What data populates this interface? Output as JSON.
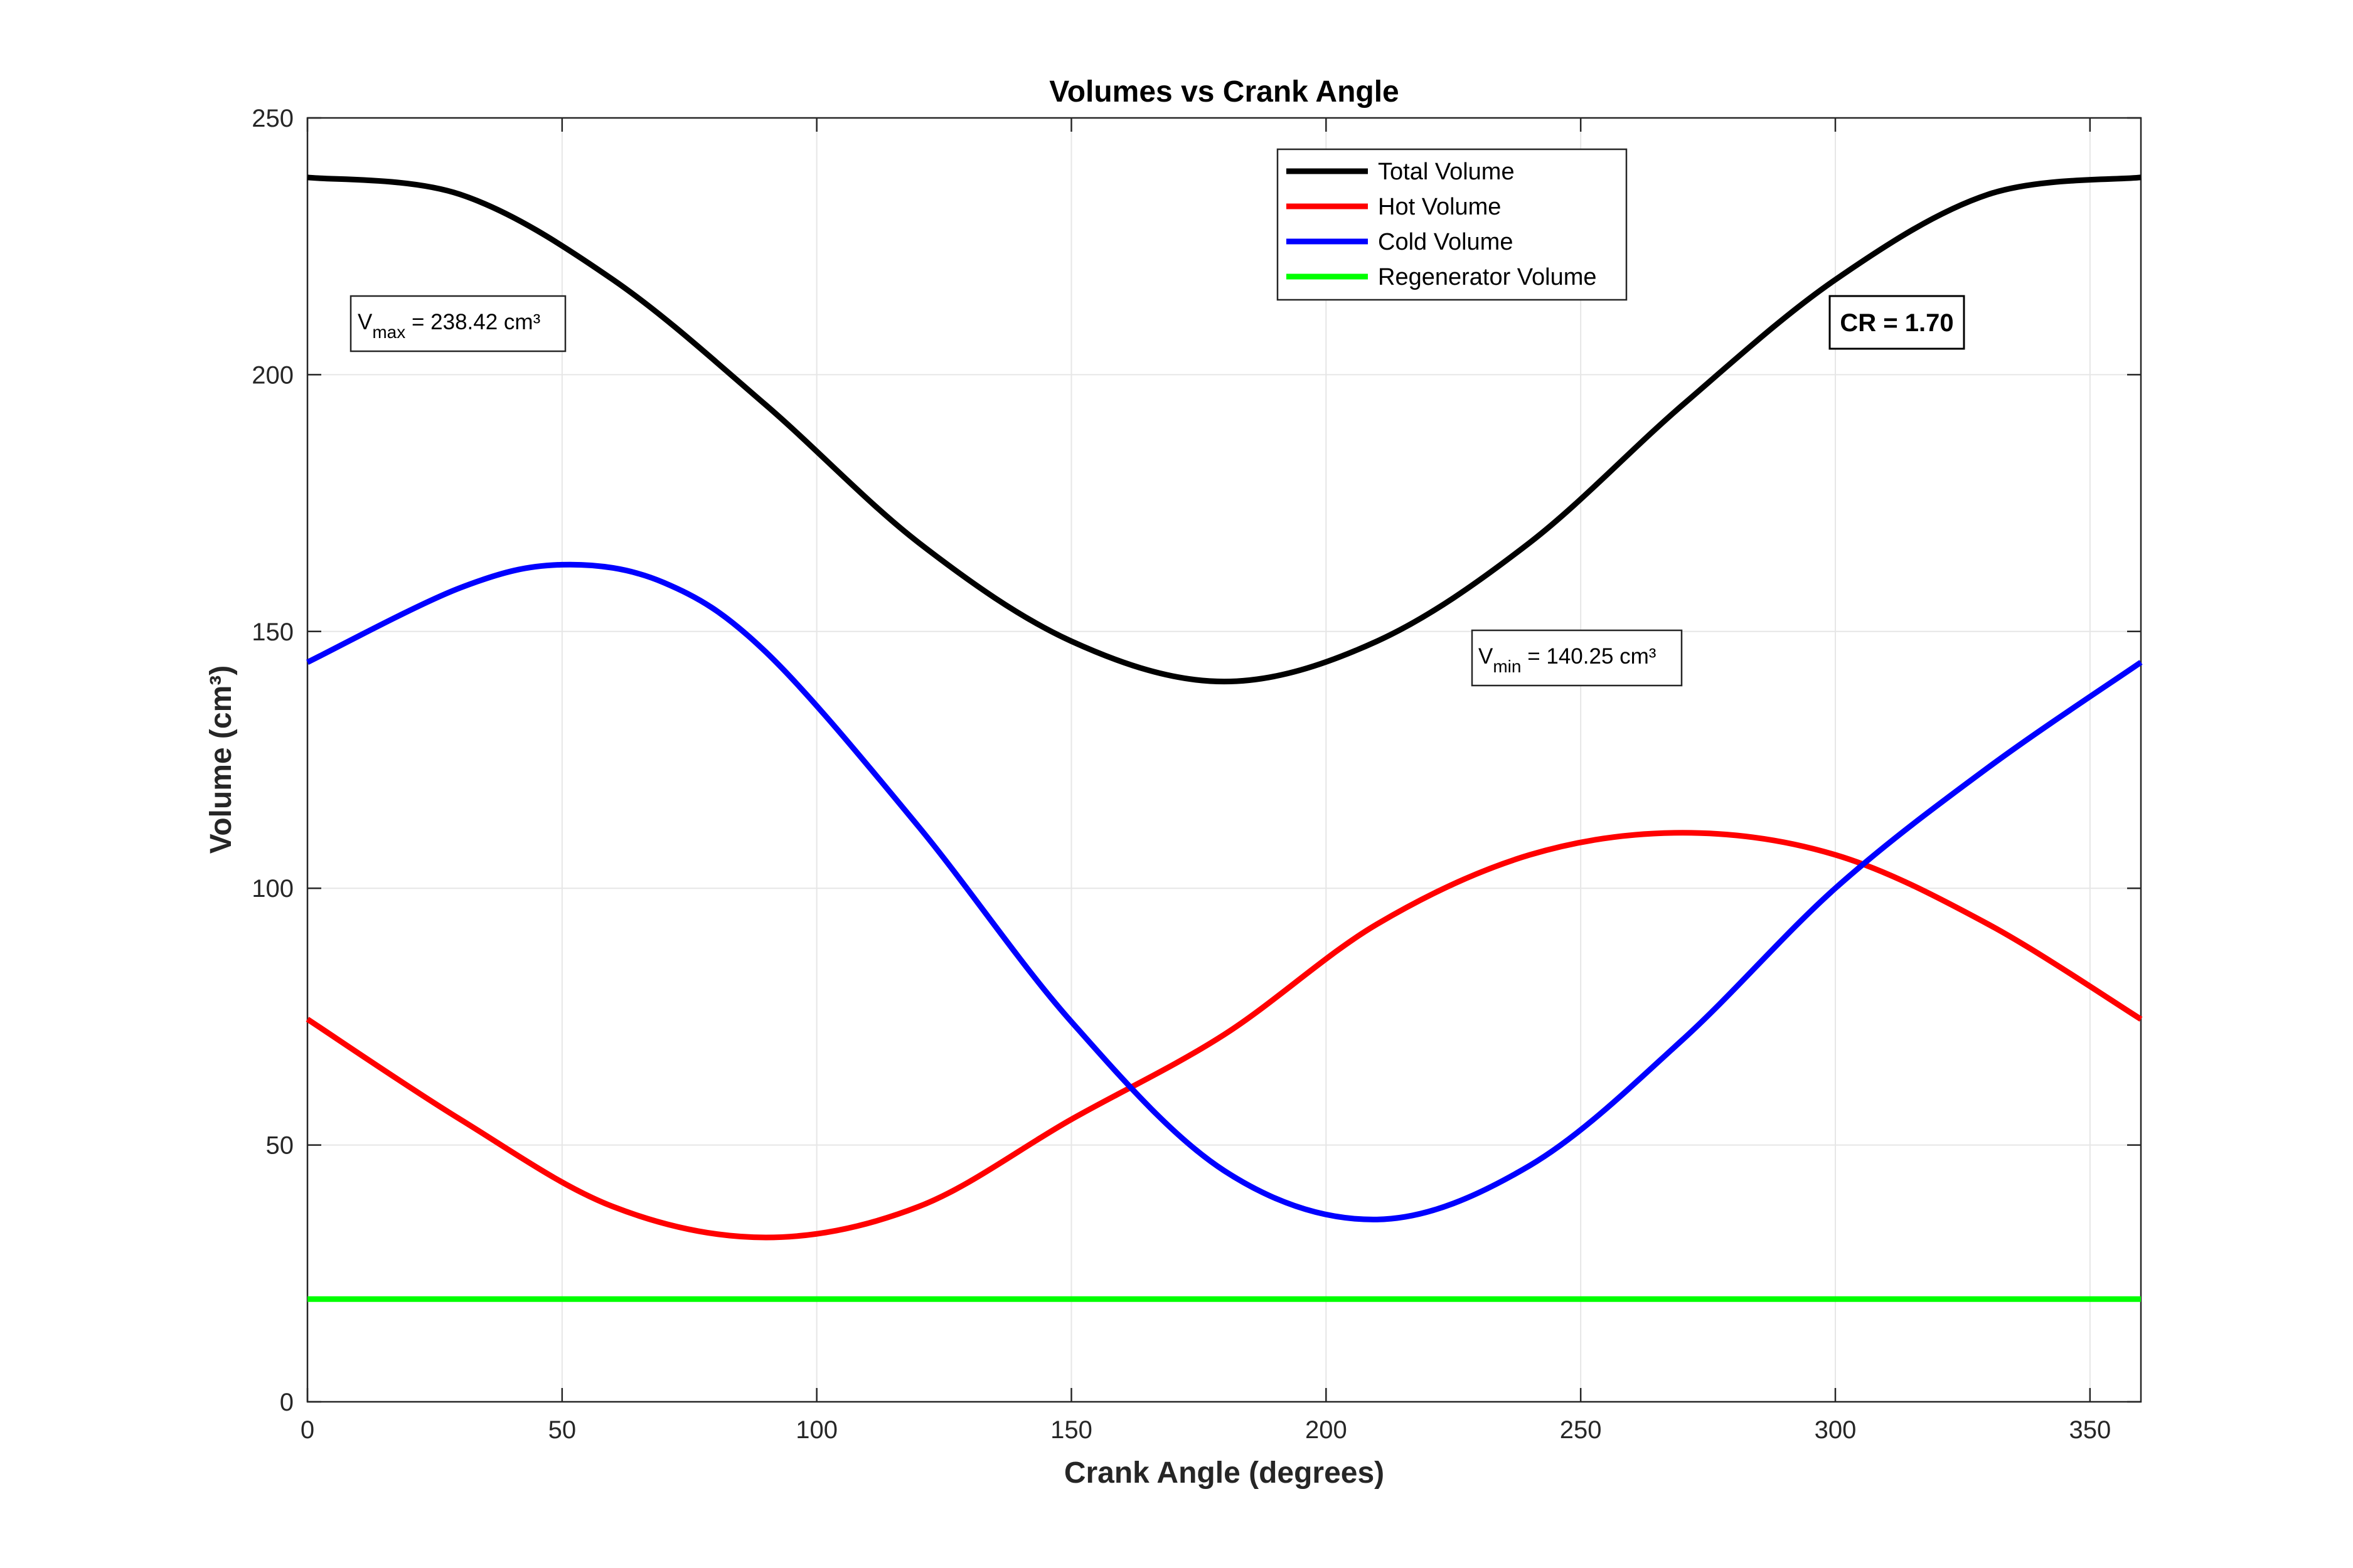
{
  "chart_data": {
    "type": "line",
    "title": "Volumes vs Crank Angle",
    "xlabel": "Crank Angle (degrees)",
    "ylabel": "Volume (cm³)",
    "xlim": [
      0,
      360
    ],
    "ylim": [
      0,
      250
    ],
    "xticks": [
      0,
      50,
      100,
      150,
      200,
      250,
      300,
      350
    ],
    "yticks": [
      0,
      50,
      100,
      150,
      200,
      250
    ],
    "grid": true,
    "legend_position": "top-center",
    "series": [
      {
        "name": "Total Volume",
        "color": "#000000",
        "x": [
          0,
          30,
          60,
          90,
          120,
          150,
          180,
          210,
          240,
          270,
          300,
          330,
          360
        ],
        "y": [
          238.42,
          235.1,
          218.5,
          194.1,
          167.3,
          148.1,
          140.25,
          148.1,
          167.3,
          194.1,
          218.5,
          235.1,
          238.42
        ]
      },
      {
        "name": "Hot Volume",
        "color": "#ff0000",
        "x": [
          0,
          30,
          60,
          90,
          120,
          150,
          180,
          210,
          240,
          270,
          300,
          330,
          360
        ],
        "y": [
          74.5,
          55.0,
          38.0,
          32.0,
          38.0,
          55.0,
          71.5,
          93.0,
          106.5,
          110.8,
          106.5,
          93.0,
          74.5
        ]
      },
      {
        "name": "Cold Volume",
        "color": "#0000ff",
        "x": [
          0,
          30,
          50,
          70,
          90,
          120,
          150,
          180,
          210,
          240,
          270,
          300,
          330,
          360
        ],
        "y": [
          144.0,
          158.5,
          163.0,
          159.5,
          146.0,
          112.0,
          74.0,
          45.0,
          35.5,
          46.0,
          70.5,
          100.0,
          123.5,
          144.0
        ]
      },
      {
        "name": "Regenerator Volume",
        "color": "#00ff00",
        "x": [
          0,
          360
        ],
        "y": [
          20,
          20
        ]
      }
    ],
    "annotations": {
      "vmax": {
        "symbol": "V",
        "subscript": "max",
        "value": " = 238.42 cm³"
      },
      "vmin": {
        "symbol": "V",
        "subscript": "min",
        "value": " = 140.25 cm³"
      },
      "cr": {
        "text": "CR = 1.70"
      }
    }
  }
}
